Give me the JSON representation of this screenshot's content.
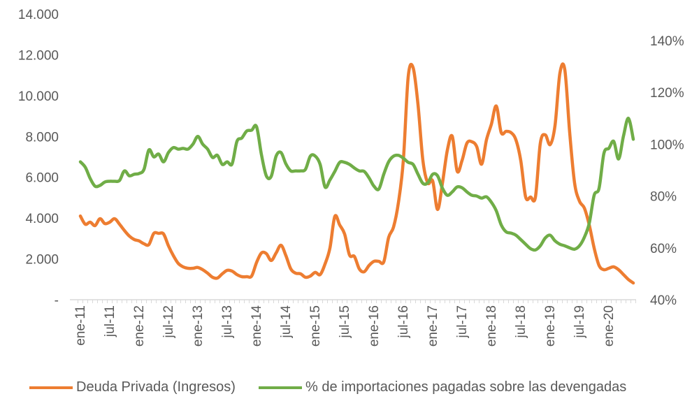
{
  "chart_data": {
    "type": "line",
    "title": "",
    "x_start": "ene-11",
    "x_frequency": "monthly",
    "x_tick_labels": [
      "ene-11",
      "jul-11",
      "ene-12",
      "jul-12",
      "ene-13",
      "jul-13",
      "ene-14",
      "jul-14",
      "ene-15",
      "jul-15",
      "ene-16",
      "jul-16",
      "ene-17",
      "jul-17",
      "ene-18",
      "jul-18",
      "ene-19",
      "jul-19",
      "ene-20"
    ],
    "y_left": {
      "ticks": [
        "-",
        "2.000",
        "4.000",
        "6.000",
        "8.000",
        "10.000",
        "12.000",
        "14.000"
      ],
      "range": [
        0,
        14000
      ]
    },
    "y_right": {
      "ticks": [
        "40%",
        "60%",
        "80%",
        "100%",
        "120%",
        "140%"
      ],
      "range": [
        40,
        140
      ]
    },
    "grid": false,
    "legend_position": "bottom",
    "series": [
      {
        "name": "Deuda Privada (Ingresos)",
        "axis": "left",
        "color": "#ED7D31",
        "values": [
          4100,
          3700,
          3800,
          3630,
          3970,
          3730,
          3800,
          3970,
          3700,
          3390,
          3120,
          2950,
          2880,
          2740,
          2700,
          3250,
          3250,
          3220,
          2640,
          2160,
          1780,
          1610,
          1540,
          1540,
          1580,
          1470,
          1300,
          1100,
          1060,
          1270,
          1440,
          1400,
          1230,
          1130,
          1130,
          1160,
          1820,
          2290,
          2260,
          1920,
          2290,
          2670,
          2160,
          1510,
          1300,
          1270,
          1100,
          1160,
          1340,
          1230,
          1750,
          2530,
          4080,
          3660,
          3220,
          2190,
          2120,
          1510,
          1370,
          1680,
          1880,
          1880,
          1850,
          3050,
          3560,
          4760,
          6820,
          10930,
          11370,
          9560,
          6820,
          5720,
          5820,
          4420,
          5720,
          7330,
          8010,
          6300,
          6820,
          7670,
          7740,
          7500,
          6640,
          7840,
          8600,
          9490,
          8190,
          8250,
          8190,
          7840,
          6820,
          5030,
          5030,
          5030,
          7670,
          8080,
          7600,
          8530,
          11100,
          11270,
          8190,
          5720,
          4830,
          4490,
          3660,
          2530,
          1680,
          1470,
          1540,
          1610,
          1470,
          1230,
          990,
          820
        ]
      },
      {
        "name": "% de importaciones pagadas sobre las devengadas",
        "axis": "right",
        "color": "#70AD47",
        "values": [
          93.2,
          91.1,
          86.8,
          83.8,
          84.1,
          85.4,
          85.7,
          85.7,
          86.0,
          89.7,
          87.8,
          88.4,
          88.7,
          90.3,
          97.8,
          95.1,
          96.2,
          93.2,
          96.8,
          98.7,
          98.1,
          98.4,
          98.1,
          100.0,
          103.0,
          100.0,
          98.1,
          94.9,
          95.7,
          92.2,
          93.2,
          92.4,
          101.1,
          102.4,
          105.1,
          105.4,
          106.8,
          96.0,
          87.8,
          87.6,
          95.4,
          96.8,
          92.4,
          89.7,
          89.7,
          89.7,
          90.3,
          95.4,
          95.4,
          92.2,
          83.5,
          86.2,
          89.5,
          93.0,
          93.0,
          92.2,
          90.8,
          89.7,
          89.5,
          87.0,
          83.8,
          82.7,
          88.4,
          93.2,
          95.4,
          95.7,
          94.6,
          93.0,
          92.2,
          88.4,
          84.9,
          85.1,
          88.4,
          87.8,
          83.0,
          80.3,
          81.6,
          83.5,
          83.2,
          81.6,
          80.3,
          80.0,
          79.2,
          79.7,
          77.6,
          74.3,
          68.9,
          66.2,
          65.7,
          64.9,
          63.2,
          61.4,
          59.7,
          59.2,
          60.8,
          63.8,
          64.9,
          62.7,
          61.4,
          60.8,
          60.0,
          59.5,
          60.8,
          64.1,
          69.5,
          80.3,
          83.0,
          96.5,
          98.4,
          101.1,
          94.3,
          103.2,
          110.0,
          101.9
        ]
      }
    ]
  }
}
